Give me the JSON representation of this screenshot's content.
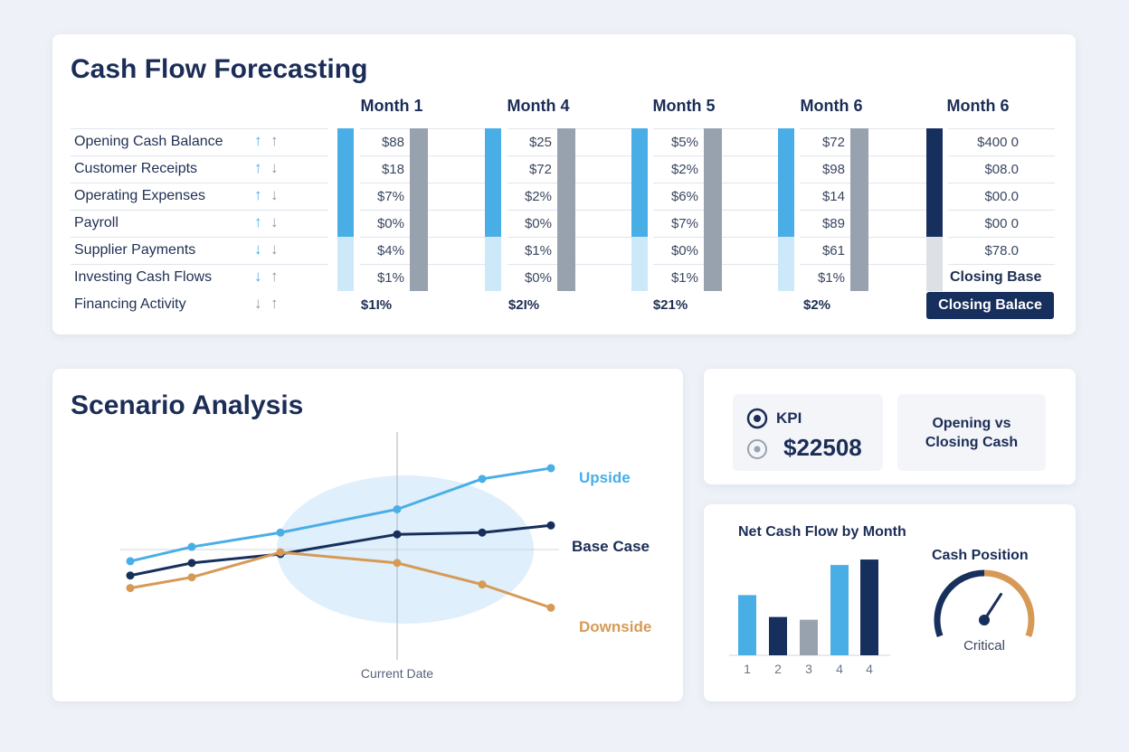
{
  "forecast": {
    "title": "Cash Flow Forecasting",
    "months": [
      "Month 1",
      "Month 4",
      "Month 5",
      "Month 6",
      "Month 6"
    ],
    "rows": [
      {
        "label": "Opening Cash Balance",
        "arrows": [
          "up",
          "up"
        ],
        "values": [
          "$88",
          "$25",
          "$5%",
          "$72",
          "$400 0"
        ]
      },
      {
        "label": "Customer Receipts",
        "arrows": [
          "up",
          "down"
        ],
        "values": [
          "$18",
          "$72",
          "$2%",
          "$98",
          "$08.0"
        ]
      },
      {
        "label": "Operating Expenses",
        "arrows": [
          "up",
          "down"
        ],
        "values": [
          "$7%",
          "$2%",
          "$6%",
          "$14",
          "$00.0"
        ]
      },
      {
        "label": "Payroll",
        "arrows": [
          "up",
          "down"
        ],
        "values": [
          "$0%",
          "$0%",
          "$7%",
          "$89",
          "$00 0"
        ]
      },
      {
        "label": "Supplier Payments",
        "arrows": [
          "down",
          "down"
        ],
        "values": [
          "$4%",
          "$1%",
          "$0%",
          "$61",
          "$78.0"
        ]
      },
      {
        "label": "Investing Cash Flows",
        "arrows": [
          "down",
          "up"
        ],
        "values": [
          "$1%",
          "$0%",
          "$1%",
          "$1%",
          "Closing Base"
        ]
      },
      {
        "label": "Financing Activity",
        "arrows": [
          "down",
          "up"
        ],
        "values": [
          "$1I%",
          "$2I%",
          "$21%",
          "$2%",
          "Closing Balace"
        ]
      }
    ],
    "icons": {
      "up": "arrow-up-icon",
      "down": "arrow-down-icon"
    },
    "colors": {
      "blue": "#4aaee6",
      "light_blue": "#cde8f8",
      "grey": "#98a2ae",
      "navy": "#172f5c"
    }
  },
  "scenario": {
    "title": "Scenario Analysis",
    "current_date_label": "Current Date",
    "chart_data": {
      "type": "line",
      "x": [
        1,
        2,
        3,
        4,
        5,
        6
      ],
      "series": [
        {
          "name": "Upside",
          "values": [
            45,
            53,
            61,
            74,
            91,
            97
          ],
          "color": "#4aaee6"
        },
        {
          "name": "Base Case",
          "values": [
            37,
            44,
            49,
            60,
            61,
            65
          ],
          "color": "#172f5c"
        },
        {
          "name": "Downside",
          "values": [
            30,
            36,
            50,
            44,
            32,
            19
          ],
          "color": "#d69a56"
        }
      ],
      "marker_x": 4,
      "grid": false
    }
  },
  "kpi": {
    "label": "KPI",
    "value": "$22508",
    "side_label": "Opening vs Closing Cash",
    "icons": [
      "target-icon",
      "target-icon"
    ]
  },
  "net_cash": {
    "title": "Net Cash Flow by Month",
    "chart_data": {
      "type": "bar",
      "categories": [
        "1",
        "2",
        "3",
        "4",
        "4"
      ],
      "values": [
        66,
        42,
        39,
        99,
        105
      ],
      "colors": [
        "#4aaee6",
        "#172f5c",
        "#98a2ae",
        "#4aaee6",
        "#172f5c"
      ],
      "ylim": [
        0,
        110
      ]
    }
  },
  "cash_position": {
    "title": "Cash Position",
    "status": "Critical",
    "level": 0.65,
    "colors": {
      "left": "#172f5c",
      "right": "#d69a56"
    }
  }
}
